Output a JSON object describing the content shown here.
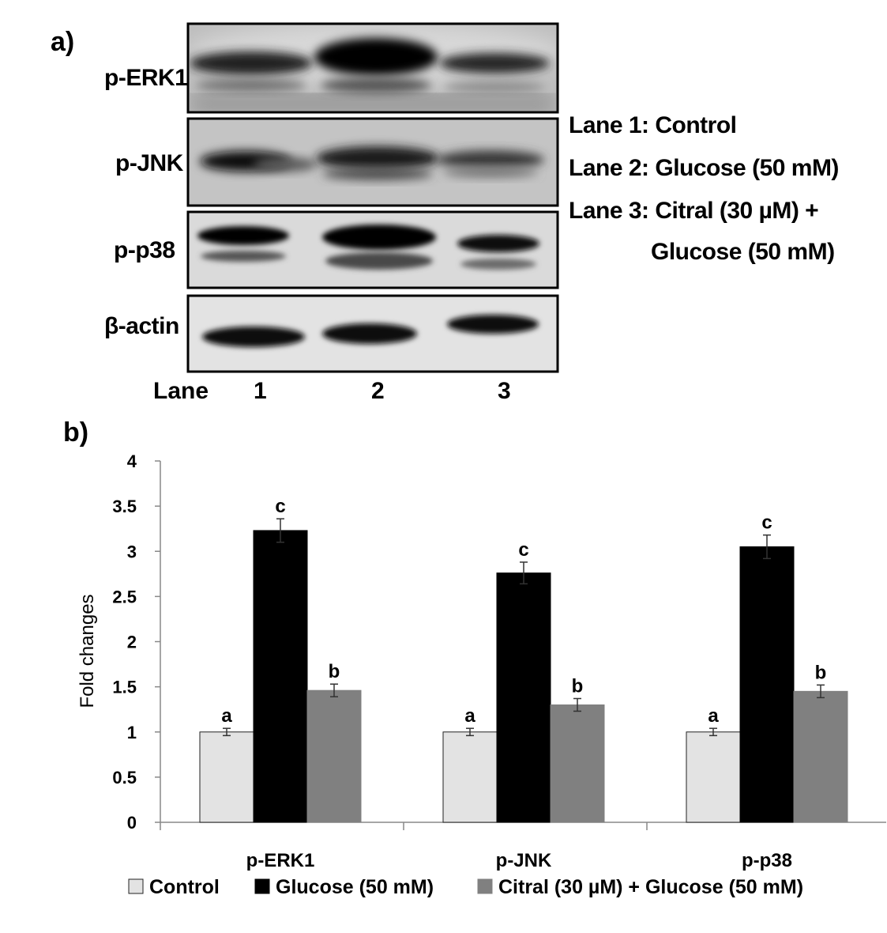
{
  "panel_a": {
    "label": "a)",
    "blots": [
      {
        "label": "p-ERK1"
      },
      {
        "label": "p-JNK"
      },
      {
        "label": "p-p38"
      },
      {
        "label": "β-actin"
      }
    ],
    "lane_axis": {
      "label": "Lane",
      "lanes": [
        "1",
        "2",
        "3"
      ]
    },
    "lane_legend": [
      "Lane 1: Control",
      "Lane 2: Glucose (50 mM)",
      "Lane 3: Citral (30 µM) +",
      "Glucose (50 mM)"
    ]
  },
  "panel_b": {
    "label": "b)"
  },
  "chart_data": {
    "type": "bar",
    "title": "",
    "xlabel": "",
    "ylabel": "Fold changes",
    "ylim": [
      0,
      4
    ],
    "yticks": [
      "0",
      "0.5",
      "1",
      "1.5",
      "2",
      "2.5",
      "3",
      "3.5",
      "4"
    ],
    "grid": false,
    "legend_position": "bottom",
    "categories": [
      "p-ERK1",
      "p-JNK",
      "p-p38"
    ],
    "series": [
      {
        "name": "Control",
        "color": "#e3e3e3",
        "values": [
          1.0,
          1.0,
          1.0
        ],
        "errors": [
          0.04,
          0.04,
          0.04
        ],
        "labels": [
          "a",
          "a",
          "a"
        ]
      },
      {
        "name": "Glucose (50 mM)",
        "color": "#000000",
        "values": [
          3.23,
          2.76,
          3.05
        ],
        "errors": [
          0.13,
          0.12,
          0.13
        ],
        "labels": [
          "c",
          "c",
          "c"
        ]
      },
      {
        "name": "Citral (30 µM) + Glucose (50 mM)",
        "color": "#808080",
        "values": [
          1.46,
          1.3,
          1.45
        ],
        "errors": [
          0.07,
          0.07,
          0.07
        ],
        "labels": [
          "b",
          "b",
          "b"
        ]
      }
    ]
  }
}
